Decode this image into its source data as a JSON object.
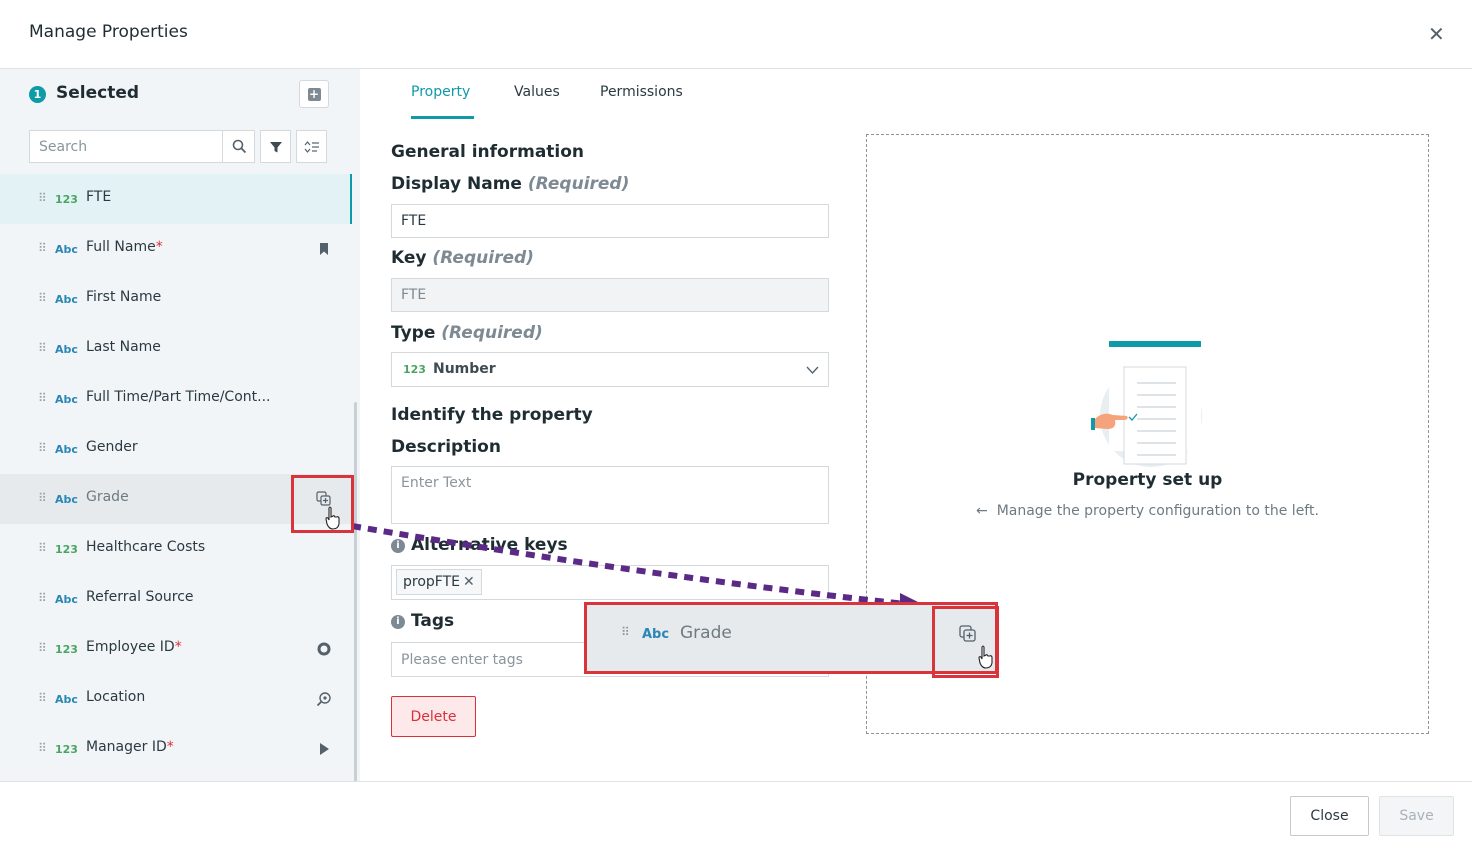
{
  "header": {
    "title": "Manage Properties",
    "close_icon": "close-icon"
  },
  "sidebar": {
    "selected_count": "1",
    "selected_title": "Selected",
    "search_placeholder": "Search",
    "items": [
      {
        "type_label": "123",
        "type": "number",
        "name": "FTE",
        "required": "",
        "state": "active",
        "icon": ""
      },
      {
        "type_label": "Abc",
        "type": "text",
        "name": "Full Name",
        "required": "*",
        "state": "",
        "icon": "bookmark-icon"
      },
      {
        "type_label": "Abc",
        "type": "text",
        "name": "First Name",
        "required": "",
        "state": "",
        "icon": ""
      },
      {
        "type_label": "Abc",
        "type": "text",
        "name": "Last Name",
        "required": "",
        "state": "",
        "icon": ""
      },
      {
        "type_label": "Abc",
        "type": "text",
        "name": "Full Time/Part Time/Cont...",
        "required": "",
        "state": "",
        "icon": ""
      },
      {
        "type_label": "Abc",
        "type": "text",
        "name": "Gender",
        "required": "",
        "state": "",
        "icon": ""
      },
      {
        "type_label": "Abc",
        "type": "text",
        "name": "Grade",
        "required": "",
        "state": "hover",
        "icon": "duplicate-icon"
      },
      {
        "type_label": "123",
        "type": "number",
        "name": "Healthcare Costs",
        "required": "",
        "state": "",
        "icon": ""
      },
      {
        "type_label": "Abc",
        "type": "text",
        "name": "Referral Source",
        "required": "",
        "state": "",
        "icon": ""
      },
      {
        "type_label": "123",
        "type": "number",
        "name": "Employee ID",
        "required": "*",
        "state": "",
        "icon": "circle-target-icon"
      },
      {
        "type_label": "Abc",
        "type": "text",
        "name": "Location",
        "required": "",
        "state": "",
        "icon": "search-location-icon"
      },
      {
        "type_label": "123",
        "type": "number",
        "name": "Manager ID",
        "required": "*",
        "state": "",
        "icon": "play-icon"
      }
    ]
  },
  "tabs": [
    {
      "label": "Property",
      "active": true
    },
    {
      "label": "Values",
      "active": false
    },
    {
      "label": "Permissions",
      "active": false
    }
  ],
  "form": {
    "general_information": "General information",
    "display_name_label": "Display Name",
    "required_tag": "(Required)",
    "display_name_value": "FTE",
    "key_label": "Key",
    "key_value": "FTE",
    "type_label": "Type",
    "type_icon_label": "123",
    "type_value": "Number",
    "identify_heading": "Identify the property",
    "description_label": "Description",
    "description_placeholder": "Enter Text",
    "alt_keys_label": "Alternative keys",
    "alt_keys": [
      "propFTE"
    ],
    "tags_label": "Tags",
    "tags_placeholder": "Please enter tags",
    "delete_label": "Delete",
    "info_glyph": "i"
  },
  "panel": {
    "title": "Property set up",
    "subtitle": "Manage the property configuration to the left.",
    "arrow": "←"
  },
  "drag_preview": {
    "type_label": "Abc",
    "name": "Grade"
  },
  "footer": {
    "close_label": "Close",
    "save_label": "Save"
  },
  "colors": {
    "accent": "#0e9aa7",
    "danger": "#d9303a",
    "annotation_red": "#d9343b",
    "annotation_purple": "#5b2a86"
  }
}
